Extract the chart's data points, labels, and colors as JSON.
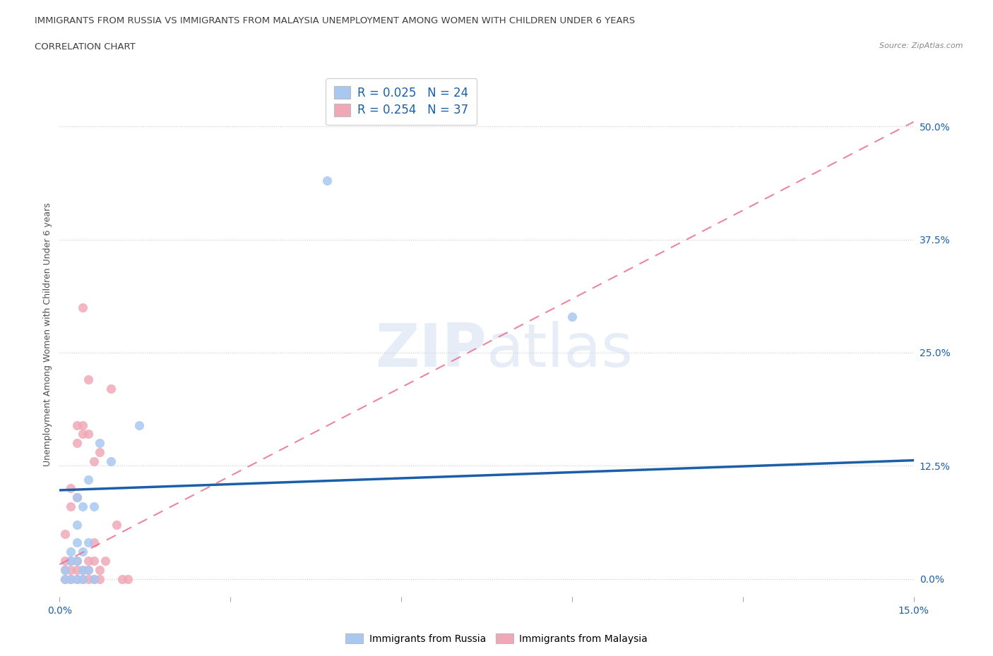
{
  "title_line1": "IMMIGRANTS FROM RUSSIA VS IMMIGRANTS FROM MALAYSIA UNEMPLOYMENT AMONG WOMEN WITH CHILDREN UNDER 6 YEARS",
  "title_line2": "CORRELATION CHART",
  "source": "Source: ZipAtlas.com",
  "ylabel": "Unemployment Among Women with Children Under 6 years",
  "xlim": [
    0.0,
    0.15
  ],
  "ylim": [
    -0.02,
    0.56
  ],
  "xticks": [
    0.0,
    0.03,
    0.06,
    0.09,
    0.12,
    0.15
  ],
  "yticks": [
    0.0,
    0.125,
    0.25,
    0.375,
    0.5
  ],
  "ytick_labels": [
    "0.0%",
    "12.5%",
    "25.0%",
    "37.5%",
    "50.0%"
  ],
  "xtick_labels": [
    "0.0%",
    "",
    "",
    "",
    "",
    "15.0%"
  ],
  "watermark": "ZIPatlas",
  "legend_russia_label": "Immigrants from Russia",
  "legend_malaysia_label": "Immigrants from Malaysia",
  "russia_R": 0.025,
  "russia_N": 24,
  "malaysia_R": 0.254,
  "malaysia_N": 37,
  "russia_color": "#a8c8f0",
  "malaysia_color": "#f0a8b8",
  "russia_line_color": "#1a5fa8",
  "malaysia_line_color": "#e87090",
  "grid_color": "#cccccc",
  "title_color": "#404040",
  "axis_label_color": "#1a5fa8",
  "russia_line_x0": 0.0,
  "russia_line_y0": 0.098,
  "russia_line_x1": 0.15,
  "russia_line_y1": 0.131,
  "malaysia_line_x0": 0.0,
  "malaysia_line_y0": 0.016,
  "malaysia_line_x1": 0.15,
  "malaysia_line_y1": 0.505,
  "russia_x": [
    0.001,
    0.001,
    0.002,
    0.002,
    0.002,
    0.003,
    0.003,
    0.003,
    0.003,
    0.003,
    0.004,
    0.004,
    0.004,
    0.004,
    0.005,
    0.005,
    0.005,
    0.006,
    0.006,
    0.007,
    0.009,
    0.014,
    0.047,
    0.09
  ],
  "russia_y": [
    0.0,
    0.01,
    0.0,
    0.02,
    0.03,
    0.0,
    0.02,
    0.04,
    0.06,
    0.09,
    0.0,
    0.01,
    0.03,
    0.08,
    0.01,
    0.04,
    0.11,
    0.0,
    0.08,
    0.15,
    0.13,
    0.17,
    0.44,
    0.29
  ],
  "malaysia_x": [
    0.001,
    0.001,
    0.001,
    0.001,
    0.002,
    0.002,
    0.002,
    0.002,
    0.002,
    0.003,
    0.003,
    0.003,
    0.003,
    0.003,
    0.003,
    0.004,
    0.004,
    0.004,
    0.004,
    0.004,
    0.005,
    0.005,
    0.005,
    0.005,
    0.005,
    0.006,
    0.006,
    0.006,
    0.006,
    0.007,
    0.007,
    0.007,
    0.008,
    0.009,
    0.01,
    0.011,
    0.012
  ],
  "malaysia_y": [
    0.0,
    0.01,
    0.02,
    0.05,
    0.0,
    0.01,
    0.02,
    0.08,
    0.1,
    0.0,
    0.01,
    0.02,
    0.09,
    0.15,
    0.17,
    0.0,
    0.01,
    0.16,
    0.17,
    0.3,
    0.0,
    0.01,
    0.02,
    0.16,
    0.22,
    0.0,
    0.02,
    0.04,
    0.13,
    0.0,
    0.01,
    0.14,
    0.02,
    0.21,
    0.06,
    0.0,
    0.0
  ]
}
